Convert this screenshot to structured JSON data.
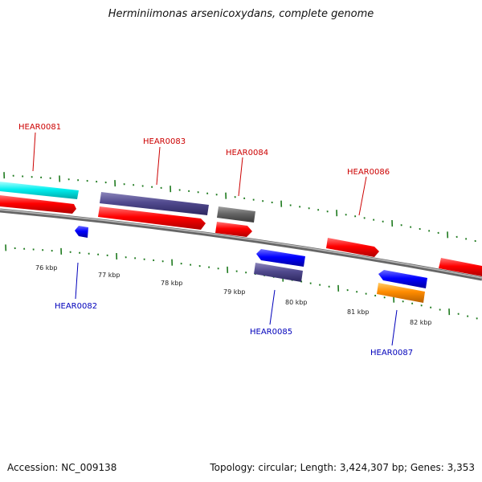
{
  "title": "Herminiimonas arsenicoxydans, complete genome",
  "footer": {
    "accession_label": "Accession:",
    "accession": "NC_009138",
    "topology_text": "Topology: circular; Length: 3,424,307 bp; Genes: 3,353"
  },
  "colors": {
    "background": "#ffffff",
    "backbone": "#888888",
    "tick": "#1e7a1e",
    "label_forward": "#cc0000",
    "label_reverse": "#0000bb",
    "gene_red": "#ff0000",
    "gene_cyan": "#00eeee",
    "gene_slate": "#514a8e",
    "gene_gray": "#666666",
    "gene_blue": "#0000ff",
    "gene_orange": "#ff8c00"
  },
  "scale_labels": [
    "76 kbp",
    "77 kbp",
    "78 kbp",
    "79 kbp",
    "80 kbp",
    "81 kbp",
    "82 kbp"
  ],
  "gene_labels": {
    "forward": [
      "HEAR0081",
      "HEAR0083",
      "HEAR0084",
      "HEAR0086"
    ],
    "reverse": [
      "HEAR0082",
      "HEAR0085",
      "HEAR0087"
    ]
  },
  "features": [
    {
      "id": "f_cyan",
      "color": "cyan",
      "strand": "forward",
      "kind": "bar"
    },
    {
      "id": "f_red1",
      "color": "red",
      "strand": "forward",
      "kind": "arrow"
    },
    {
      "id": "f_slate1",
      "color": "slate",
      "strand": "forward",
      "kind": "bar"
    },
    {
      "id": "f_red2",
      "color": "red",
      "strand": "forward",
      "kind": "arrow"
    },
    {
      "id": "f_gray",
      "color": "gray",
      "strand": "forward",
      "kind": "bar"
    },
    {
      "id": "f_red3",
      "color": "red",
      "strand": "forward",
      "kind": "arrow"
    },
    {
      "id": "f_red4",
      "color": "red",
      "strand": "forward",
      "kind": "arrow"
    },
    {
      "id": "f_red5",
      "color": "red",
      "strand": "forward",
      "kind": "arrow"
    },
    {
      "id": "f_blue1",
      "color": "blue",
      "strand": "reverse",
      "kind": "arrow"
    },
    {
      "id": "f_blue2",
      "color": "blue",
      "strand": "reverse",
      "kind": "arrow"
    },
    {
      "id": "f_slate2",
      "color": "slate",
      "strand": "reverse",
      "kind": "bar"
    },
    {
      "id": "f_blue3",
      "color": "blue",
      "strand": "reverse",
      "kind": "arrow"
    },
    {
      "id": "f_orange",
      "color": "orange",
      "strand": "reverse",
      "kind": "bar"
    }
  ]
}
